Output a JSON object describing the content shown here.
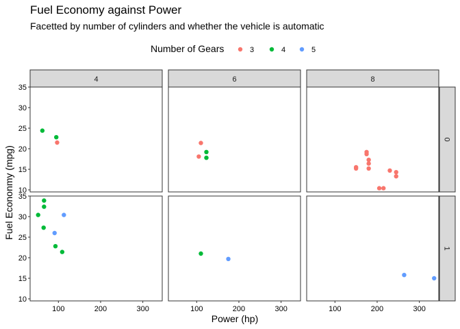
{
  "chart_data": {
    "type": "scatter",
    "title": "Fuel Economy against Power",
    "subtitle": "Facetted by number of cylinders and whether the vehicle is automatic",
    "xlabel": "Power (hp)",
    "ylabel": "Fuel Econonmy (mpg)",
    "xlim": [
      33,
      346
    ],
    "ylim": [
      9.5,
      35
    ],
    "x_ticks": [
      100,
      200,
      300
    ],
    "y_ticks": [
      10,
      15,
      20,
      25,
      30,
      35
    ],
    "facet_cols": [
      "4",
      "6",
      "8"
    ],
    "facet_rows": [
      "0",
      "1"
    ],
    "legend": {
      "title": "Number of Gears",
      "position": "top",
      "entries": [
        {
          "label": "3",
          "color": "#F8766D"
        },
        {
          "label": "4",
          "color": "#00BA38"
        },
        {
          "label": "5",
          "color": "#619CFF"
        }
      ]
    },
    "grid": false,
    "panels": [
      {
        "col": "4",
        "row": "0",
        "points": [
          {
            "x": 62,
            "y": 24.4,
            "gear": "4"
          },
          {
            "x": 95,
            "y": 22.8,
            "gear": "4"
          },
          {
            "x": 97,
            "y": 21.5,
            "gear": "3"
          }
        ]
      },
      {
        "col": "6",
        "row": "0",
        "points": [
          {
            "x": 110,
            "y": 21.4,
            "gear": "3"
          },
          {
            "x": 105,
            "y": 18.1,
            "gear": "3"
          },
          {
            "x": 123,
            "y": 19.2,
            "gear": "4"
          },
          {
            "x": 123,
            "y": 17.8,
            "gear": "4"
          }
        ]
      },
      {
        "col": "8",
        "row": "0",
        "points": [
          {
            "x": 175,
            "y": 18.7,
            "gear": "3"
          },
          {
            "x": 175,
            "y": 19.2,
            "gear": "3"
          },
          {
            "x": 180,
            "y": 17.3,
            "gear": "3"
          },
          {
            "x": 180,
            "y": 16.4,
            "gear": "3"
          },
          {
            "x": 180,
            "y": 15.2,
            "gear": "3"
          },
          {
            "x": 150,
            "y": 15.5,
            "gear": "3"
          },
          {
            "x": 150,
            "y": 15.2,
            "gear": "3"
          },
          {
            "x": 230,
            "y": 14.7,
            "gear": "3"
          },
          {
            "x": 245,
            "y": 14.3,
            "gear": "3"
          },
          {
            "x": 245,
            "y": 13.3,
            "gear": "3"
          },
          {
            "x": 205,
            "y": 10.4,
            "gear": "3"
          },
          {
            "x": 215,
            "y": 10.4,
            "gear": "3"
          }
        ]
      },
      {
        "col": "4",
        "row": "1",
        "points": [
          {
            "x": 66,
            "y": 33.9,
            "gear": "4"
          },
          {
            "x": 66,
            "y": 32.4,
            "gear": "4"
          },
          {
            "x": 52,
            "y": 30.4,
            "gear": "4"
          },
          {
            "x": 65,
            "y": 27.3,
            "gear": "4"
          },
          {
            "x": 93,
            "y": 22.8,
            "gear": "4"
          },
          {
            "x": 109,
            "y": 21.4,
            "gear": "4"
          },
          {
            "x": 113,
            "y": 30.4,
            "gear": "5"
          },
          {
            "x": 91,
            "y": 26.0,
            "gear": "5"
          }
        ]
      },
      {
        "col": "6",
        "row": "1",
        "points": [
          {
            "x": 110,
            "y": 21.0,
            "gear": "4"
          },
          {
            "x": 175,
            "y": 19.7,
            "gear": "5"
          }
        ]
      },
      {
        "col": "8",
        "row": "1",
        "points": [
          {
            "x": 264,
            "y": 15.8,
            "gear": "5"
          },
          {
            "x": 335,
            "y": 15.0,
            "gear": "5"
          }
        ]
      }
    ]
  }
}
